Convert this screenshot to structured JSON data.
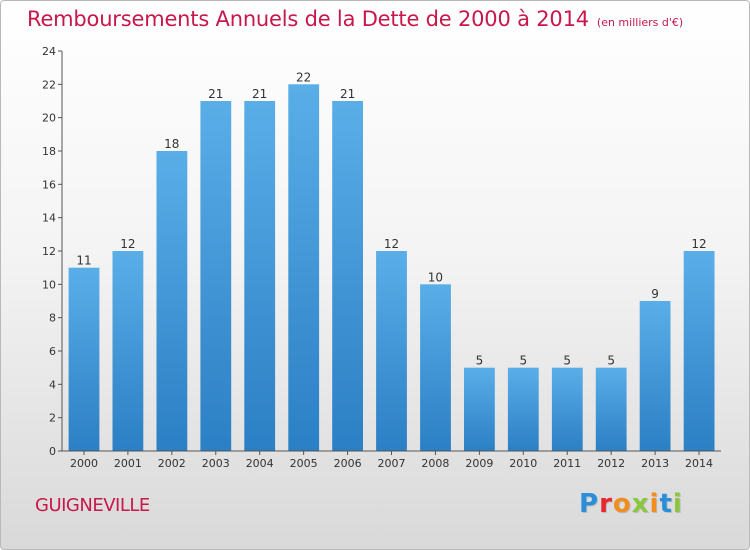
{
  "header": {
    "title": "Remboursements Annuels de la Dette de 2000 à 2014",
    "subtitle": "(en milliers d'€)"
  },
  "footer": {
    "town": "GUIGNEVILLE",
    "brand": "Proxiti"
  },
  "colors": {
    "title": "#c8174a",
    "bar_top": "#5aaee8",
    "bar_bottom": "#2b7fc4"
  },
  "chart_data": {
    "type": "bar",
    "title": "Remboursements Annuels de la Dette de 2000 à 2014",
    "subtitle": "(en milliers d'€)",
    "xlabel": "",
    "ylabel": "",
    "categories": [
      "2000",
      "2001",
      "2002",
      "2003",
      "2004",
      "2005",
      "2006",
      "2007",
      "2008",
      "2009",
      "2010",
      "2011",
      "2012",
      "2013",
      "2014"
    ],
    "values": [
      11,
      12,
      18,
      21,
      21,
      22,
      21,
      12,
      10,
      5,
      5,
      5,
      5,
      9,
      12
    ],
    "ylim": [
      0,
      24
    ],
    "yticks": [
      0,
      2,
      4,
      6,
      8,
      10,
      12,
      14,
      16,
      18,
      20,
      22,
      24
    ],
    "grid": false,
    "legend": "none"
  }
}
